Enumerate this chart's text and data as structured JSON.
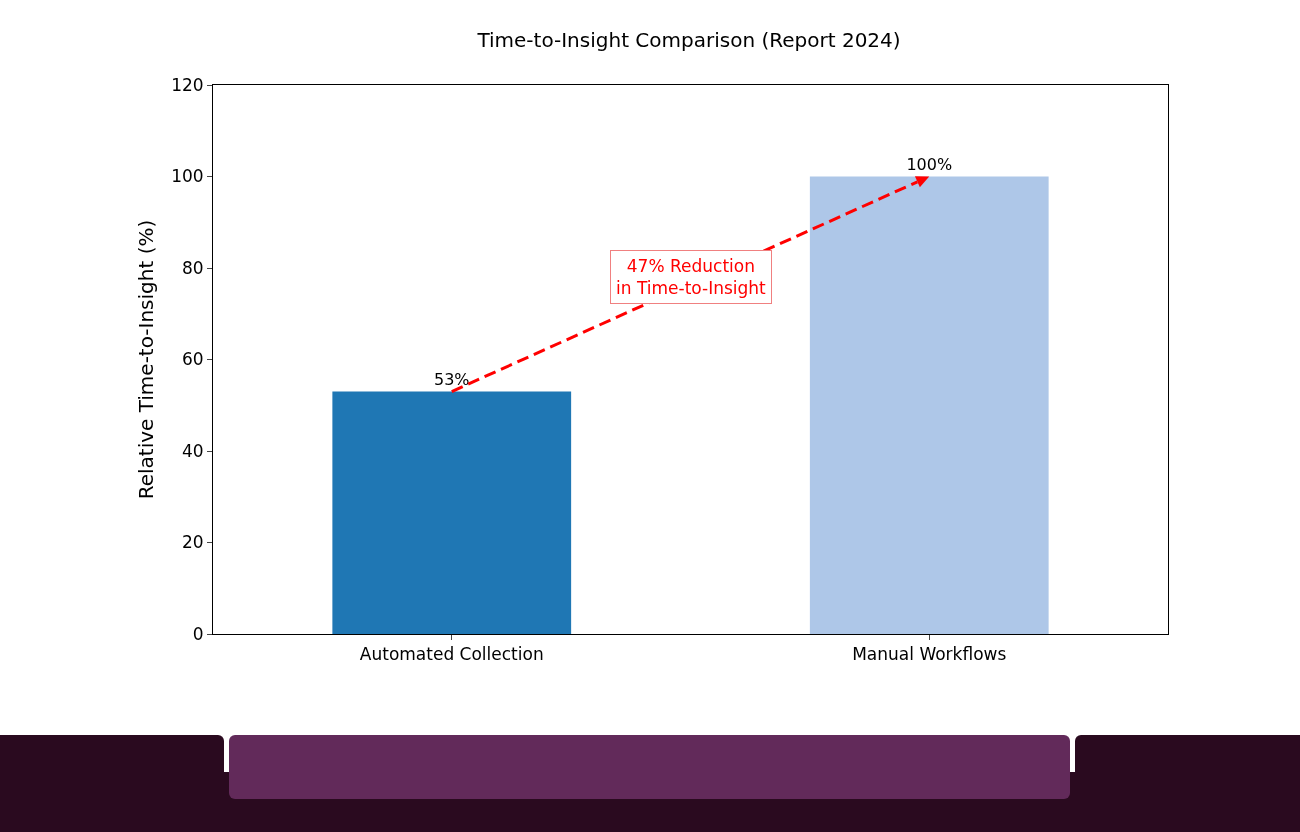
{
  "chart_data": {
    "type": "bar",
    "title": "Time-to-Insight Comparison (Report 2024)",
    "ylabel": "Relative Time-to-Insight (%)",
    "categories": [
      "Automated Collection",
      "Manual Workflows"
    ],
    "values": [
      53,
      100
    ],
    "colors": [
      "#1f77b4",
      "#aec7e8"
    ],
    "value_labels": [
      "53%",
      "100%"
    ],
    "ylim": [
      0,
      120
    ],
    "yticks": [
      0,
      20,
      40,
      60,
      80,
      100,
      120
    ],
    "grid": false,
    "annotations": [
      "47% Reduction\nin Time-to-Insight"
    ]
  }
}
